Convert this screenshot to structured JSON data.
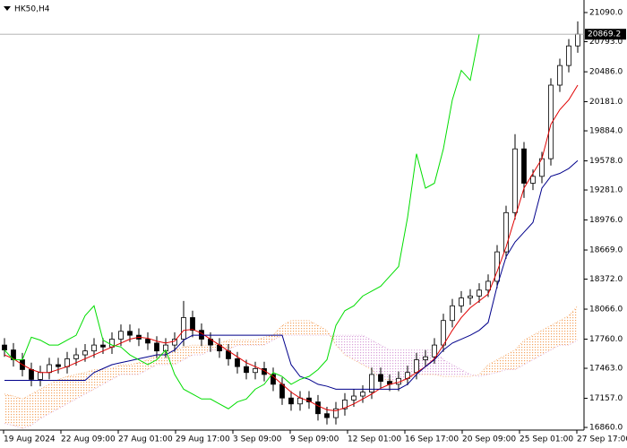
{
  "chart_data": {
    "type": "candlestick",
    "symbol": "HK50,H4",
    "open": [
      17700,
      17650,
      17550,
      17450,
      17350,
      17420,
      17500,
      17480,
      17560,
      17600,
      17640,
      17700,
      17680,
      17760,
      17840,
      17800,
      17760,
      17720,
      17640,
      17700,
      17760,
      17980,
      17850,
      17760,
      17700,
      17640,
      17560,
      17480,
      17420,
      17460,
      17400,
      17300,
      17160,
      17100,
      17160,
      17120,
      17000,
      16960,
      17050,
      17140,
      17180,
      17220,
      17400,
      17330,
      17300,
      17360,
      17420,
      17550,
      17580,
      17700,
      17950,
      18100,
      18180,
      18200,
      18260,
      18350,
      18650,
      19050,
      19700,
      19350,
      19420,
      19600,
      20350,
      20550,
      20750
    ],
    "high": [
      17770,
      17720,
      17620,
      17520,
      17490,
      17570,
      17570,
      17630,
      17670,
      17710,
      17770,
      17770,
      17830,
      17910,
      17910,
      17870,
      17830,
      17790,
      17770,
      17830,
      18150,
      18050,
      17920,
      17830,
      17770,
      17710,
      17630,
      17550,
      17530,
      17530,
      17470,
      17370,
      17230,
      17230,
      17230,
      17190,
      17070,
      17120,
      17210,
      17250,
      17290,
      17470,
      17470,
      17400,
      17430,
      17490,
      17620,
      17650,
      17770,
      18020,
      18170,
      18250,
      18270,
      18330,
      18420,
      18720,
      19120,
      19850,
      19770,
      19490,
      19670,
      20420,
      20620,
      20820,
      21000
    ],
    "low": [
      17580,
      17480,
      17380,
      17280,
      17280,
      17350,
      17410,
      17410,
      17490,
      17530,
      17570,
      17610,
      17610,
      17690,
      17730,
      17690,
      17650,
      17570,
      17570,
      17630,
      17690,
      17780,
      17690,
      17630,
      17570,
      17490,
      17410,
      17350,
      17350,
      17330,
      17230,
      17090,
      17030,
      17030,
      17050,
      16930,
      16890,
      16890,
      16980,
      17070,
      17110,
      17150,
      17260,
      17230,
      17230,
      17290,
      17350,
      17480,
      17510,
      17630,
      17880,
      18030,
      18110,
      18130,
      18190,
      18280,
      18580,
      18980,
      19200,
      19280,
      19350,
      19530,
      20280,
      20480,
      20680
    ],
    "close": [
      17650,
      17550,
      17450,
      17350,
      17420,
      17500,
      17480,
      17560,
      17600,
      17640,
      17700,
      17680,
      17760,
      17840,
      17800,
      17760,
      17720,
      17640,
      17700,
      17760,
      17980,
      17850,
      17760,
      17700,
      17640,
      17560,
      17480,
      17420,
      17460,
      17400,
      17300,
      17160,
      17100,
      17160,
      17120,
      17000,
      16960,
      17050,
      17140,
      17180,
      17220,
      17400,
      17330,
      17300,
      17360,
      17420,
      17550,
      17580,
      17700,
      17950,
      18100,
      18180,
      18200,
      18260,
      18350,
      18650,
      19050,
      19700,
      19350,
      19420,
      19600,
      20350,
      20550,
      20750,
      20869.2
    ],
    "candle_up_color": "#ffffff",
    "candle_down_color": "#000000",
    "lines": [
      {
        "color": "#e00000",
        "values": [
          17600,
          17560,
          17500,
          17450,
          17420,
          17420,
          17450,
          17480,
          17520,
          17560,
          17600,
          17640,
          17680,
          17720,
          17760,
          17780,
          17770,
          17740,
          17720,
          17740,
          17850,
          17860,
          17820,
          17760,
          17700,
          17640,
          17580,
          17520,
          17480,
          17440,
          17380,
          17300,
          17220,
          17160,
          17130,
          17080,
          17040,
          17030,
          17060,
          17100,
          17150,
          17200,
          17260,
          17300,
          17320,
          17360,
          17420,
          17480,
          17560,
          17700,
          17850,
          17980,
          18080,
          18150,
          18220,
          18450,
          18700,
          19000,
          19300,
          19450,
          19600,
          19950,
          20100,
          20200,
          20350
        ]
      },
      {
        "color": "#00008b",
        "values": [
          17340,
          17340,
          17340,
          17340,
          17340,
          17340,
          17340,
          17340,
          17340,
          17340,
          17420,
          17460,
          17500,
          17520,
          17540,
          17560,
          17580,
          17600,
          17600,
          17650,
          17750,
          17800,
          17800,
          17800,
          17800,
          17800,
          17800,
          17800,
          17800,
          17800,
          17800,
          17800,
          17500,
          17380,
          17350,
          17300,
          17280,
          17250,
          17250,
          17250,
          17250,
          17250,
          17250,
          17250,
          17250,
          17300,
          17400,
          17480,
          17550,
          17650,
          17720,
          17760,
          17800,
          17850,
          17930,
          18300,
          18600,
          18750,
          18850,
          18950,
          19300,
          19420,
          19450,
          19500,
          19580
        ]
      },
      {
        "color": "#00dd00",
        "values": [
          17650,
          17550,
          17550,
          17780,
          17750,
          17700,
          17700,
          17750,
          17800,
          18000,
          18100,
          17750,
          17700,
          17680,
          17600,
          17550,
          17500,
          17550,
          17650,
          17400,
          17250,
          17200,
          17150,
          17150,
          17100,
          17050,
          17120,
          17150,
          17250,
          17300,
          17420,
          17380,
          17300,
          17350,
          17380,
          17450,
          17550,
          17900,
          18050,
          18100,
          18200,
          18250,
          18300,
          18400,
          18500,
          19000,
          19650,
          19300,
          19350,
          19700,
          20200,
          20500,
          20400,
          20870,
          null,
          null,
          null,
          null,
          null,
          null,
          null,
          null,
          null,
          null,
          null
        ]
      }
    ],
    "cloud": {
      "up_color": "#f4a460",
      "down_color": "#d8a0d8",
      "span_a": [
        17200,
        17180,
        17150,
        17200,
        17250,
        17300,
        17350,
        17380,
        17400,
        17420,
        17450,
        17450,
        17460,
        17500,
        17500,
        17520,
        17550,
        17600,
        17620,
        17650,
        17680,
        17700,
        17700,
        17700,
        17720,
        17750,
        17750,
        17750,
        17750,
        17780,
        17800,
        17900,
        17950,
        17950,
        17950,
        17900,
        17850,
        17700,
        17600,
        17550,
        17500,
        17450,
        17350,
        17350,
        17300,
        17350,
        17400,
        17400,
        17400,
        17380,
        17380,
        17380,
        17380,
        17400,
        17500,
        17550,
        17600,
        17650,
        17750,
        17800,
        17850,
        17900,
        17950,
        18000,
        18100
      ],
      "span_b": [
        16900,
        16880,
        16850,
        16880,
        16950,
        17000,
        17050,
        17100,
        17150,
        17200,
        17250,
        17300,
        17350,
        17400,
        17400,
        17400,
        17450,
        17500,
        17500,
        17500,
        17550,
        17600,
        17600,
        17650,
        17650,
        17650,
        17700,
        17700,
        17700,
        17700,
        17750,
        17800,
        17800,
        17800,
        17800,
        17800,
        17800,
        17800,
        17800,
        17800,
        17800,
        17750,
        17700,
        17650,
        17650,
        17650,
        17650,
        17650,
        17650,
        17550,
        17500,
        17450,
        17400,
        17380,
        17400,
        17420,
        17450,
        17450,
        17500,
        17550,
        17600,
        17650,
        17700,
        17700,
        17750
      ]
    },
    "current_price": 20869.2,
    "ylim": [
      16833,
      21218
    ],
    "yticks": [
      {
        "value": 21090,
        "label": "21090.0"
      },
      {
        "value": 20793,
        "label": "20793.0"
      },
      {
        "value": 20486,
        "label": "20486.0"
      },
      {
        "value": 20181,
        "label": "20181.0"
      },
      {
        "value": 19884,
        "label": "19884.0"
      },
      {
        "value": 19578,
        "label": "19578.0"
      },
      {
        "value": 19281,
        "label": "19281.0"
      },
      {
        "value": 18976,
        "label": "18976.0"
      },
      {
        "value": 18669,
        "label": "18669.0"
      },
      {
        "value": 18372,
        "label": "18372.0"
      },
      {
        "value": 18066,
        "label": "18066.0"
      },
      {
        "value": 17760,
        "label": "17760.0"
      },
      {
        "value": 17463,
        "label": "17463.0"
      },
      {
        "value": 17157,
        "label": "17157.0"
      },
      {
        "value": 16860,
        "label": "16860.0"
      }
    ],
    "xlabels": [
      "19 Aug 2024",
      "22 Aug 09:00",
      "27 Aug 01:00",
      "29 Aug 17:00",
      "3 Sep 09:00",
      "9 Sep 09:00",
      "12 Sep 01:00",
      "16 Sep 17:00",
      "20 Sep 09:00",
      "25 Sep 01:00",
      "27 Sep 17:00"
    ]
  }
}
